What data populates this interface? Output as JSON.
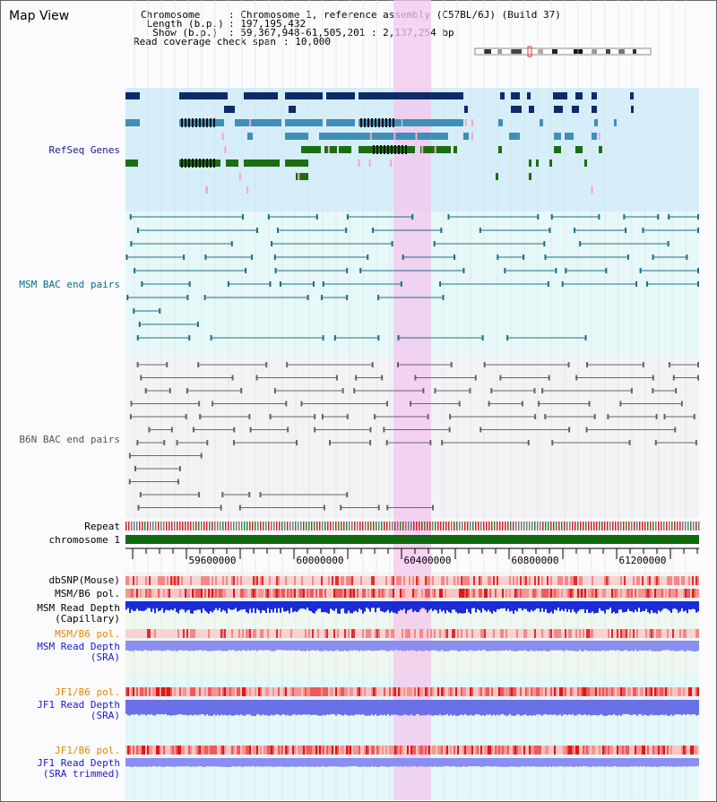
{
  "header": {
    "title": "Map View",
    "chromosome_key": "Chromosome",
    "chromosome_val": ": Chromosome 1, reference assembly (C57BL/6J) (Build 37)",
    "length_key": " Length (b.p.)",
    "length_val": ": 197,195,432",
    "show_key": "  Show (b.p.)",
    "show_val": ": 59,367,948-61,505,201 : 2,137,254 bp",
    "coverage_key": "Read coverage check span",
    "coverage_val": ": 10,000"
  },
  "tracks": {
    "refseq": "RefSeq Genes",
    "msm_bac": "MSM BAC end pairs",
    "b6n_bac": "B6N BAC end pairs",
    "repeat": "Repeat",
    "chromosome": "chromosome 1",
    "dbsnp": "dbSNP(Mouse)",
    "msm_b6_pol": "MSM/B6 pol.",
    "msm_read_depth_cap_1": "MSM Read Depth",
    "msm_read_depth_cap_2": "(Capillary)",
    "msm_b6_pol_2": "MSM/B6 pol.",
    "msm_read_depth_sra_1": "MSM Read Depth",
    "msm_read_depth_sra_2": "(SRA)",
    "jf1_b6_pol": "JF1/B6 pol.",
    "jf1_read_depth_sra_1": "JF1 Read Depth",
    "jf1_read_depth_sra_2": "(SRA)",
    "jf1_b6_pol_2": "JF1/B6 pol.",
    "jf1_read_depth_trim_1": "JF1 Read Depth",
    "jf1_read_depth_trim_2": "(SRA trimmed)"
  },
  "ruler": {
    "ticks": [
      "59600000",
      "60000000",
      "60400000",
      "60800000",
      "61200000"
    ]
  },
  "colors": {
    "refseq_bg": "#d6eef9",
    "msm_bg": "#e6f8f8",
    "b6n_bg": "#f3f3f6",
    "highlight": "#f4c6ee",
    "gene_dark": "#0d2a6b",
    "gene_mid": "#3f8fb9",
    "gene_green": "#1c6e12",
    "chromosome_green": "#0f6a10"
  }
}
